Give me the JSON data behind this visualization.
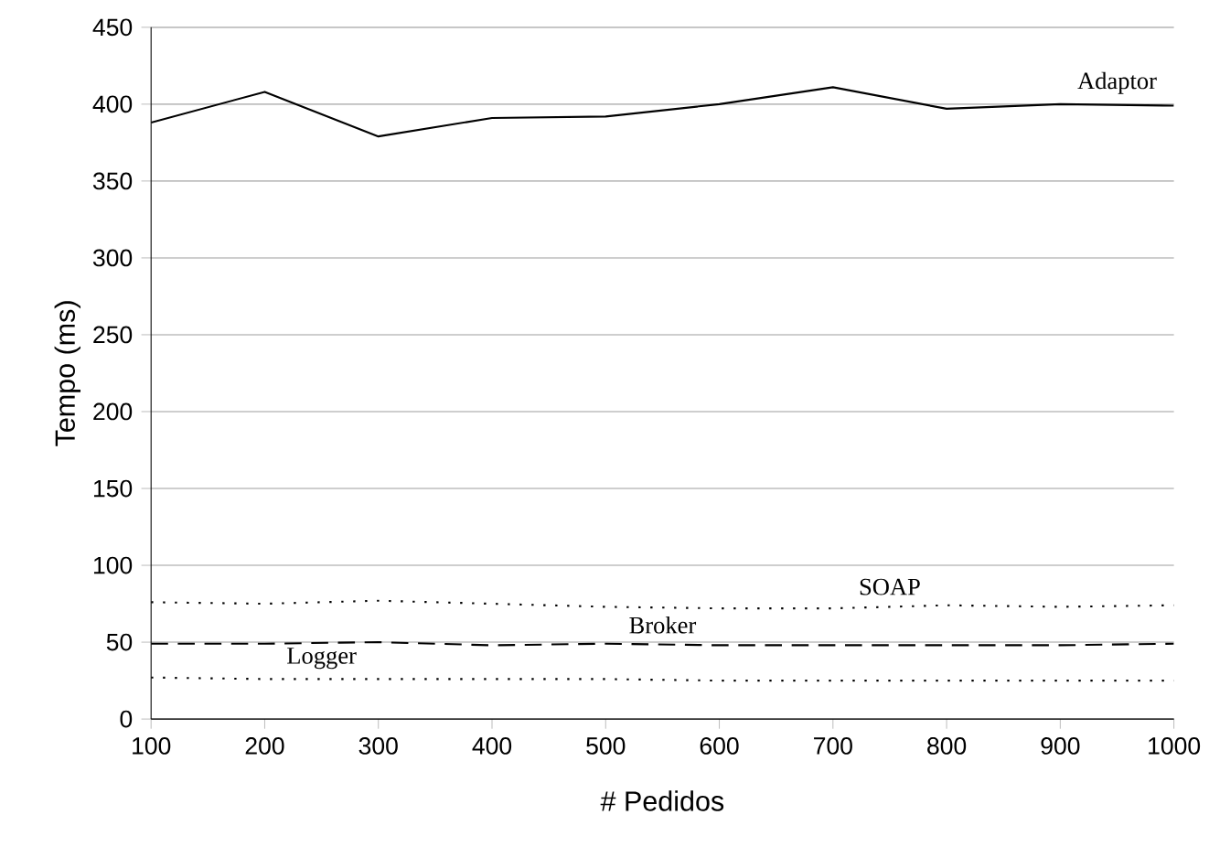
{
  "chart_data": {
    "type": "line",
    "xlabel": "# Pedidos",
    "ylabel": "Tempo (ms)",
    "x": [
      100,
      200,
      300,
      400,
      500,
      600,
      700,
      800,
      900,
      1000
    ],
    "series": [
      {
        "name": "Adaptor",
        "color": "#000000",
        "line_style": "solid",
        "values": [
          388,
          408,
          379,
          391,
          392,
          400,
          411,
          397,
          400,
          399
        ]
      },
      {
        "name": "SOAP",
        "color": "#000000",
        "line_style": "dotted",
        "values": [
          76,
          75,
          77,
          75,
          73,
          72,
          72,
          74,
          73,
          74
        ]
      },
      {
        "name": "Broker",
        "color": "#000000",
        "line_style": "dashed",
        "values": [
          49,
          49,
          50,
          48,
          49,
          48,
          48,
          48,
          48,
          49
        ]
      },
      {
        "name": "Logger",
        "color": "#000000",
        "line_style": "dotted",
        "values": [
          27,
          26,
          26,
          26,
          26,
          25,
          25,
          25,
          25,
          25
        ]
      }
    ],
    "xlim": [
      100,
      1000
    ],
    "ylim": [
      0,
      450
    ],
    "xticks": [
      100,
      200,
      300,
      400,
      500,
      600,
      700,
      800,
      900,
      1000
    ],
    "yticks": [
      0,
      50,
      100,
      150,
      200,
      250,
      300,
      350,
      400,
      450
    ],
    "grid": "y"
  }
}
